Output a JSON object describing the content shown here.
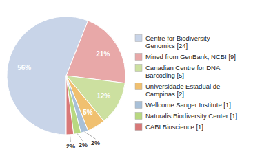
{
  "chart_data": {
    "type": "pie",
    "categories": [
      "Centre for Biodiversity\nGenomics [24]",
      "Mined from GenBank, NCBI [9]",
      "Canadian Centre for DNA\nBarcoding [5]",
      "Universidade Estadual de\nCampinas [2]",
      "Wellcome Sanger Institute [1]",
      "Naturalis Biodiversity Center [1]",
      "CABI Bioscience [1]"
    ],
    "values": [
      56,
      21,
      12,
      5,
      2,
      2,
      2
    ],
    "value_labels": [
      "56%",
      "21%",
      "12%",
      "5%",
      "2%",
      "2%",
      "2%"
    ],
    "colors": [
      "#c8d4e8",
      "#e8a8a8",
      "#cce0a0",
      "#f0c070",
      "#a8c0d8",
      "#b8d880",
      "#d87878"
    ],
    "data_labels": true,
    "legend": "right"
  }
}
